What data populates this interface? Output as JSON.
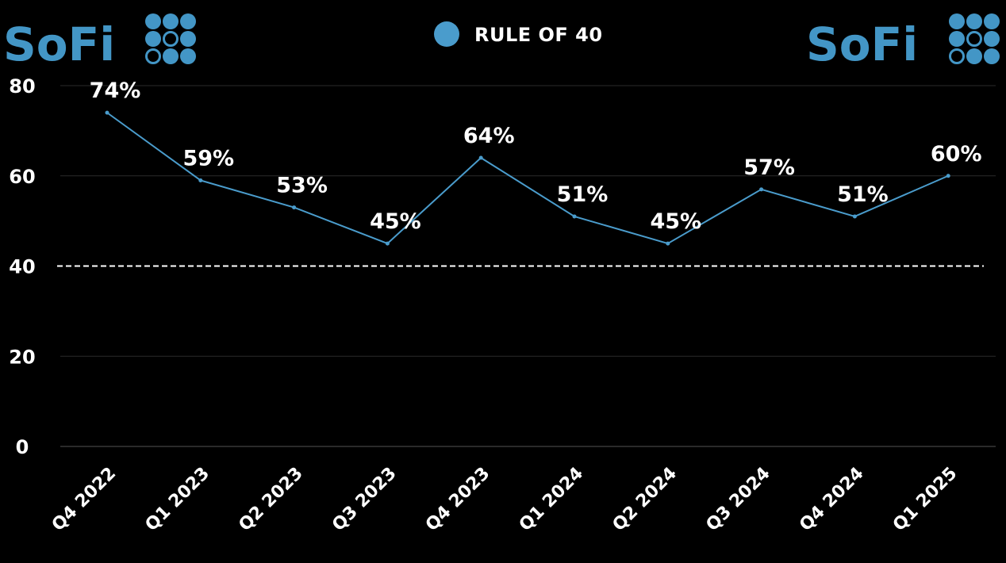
{
  "brand": {
    "name": "SoFi",
    "icon": "sofi-dot-grid-icon",
    "color": "#4396c6"
  },
  "colors": {
    "background": "#000000",
    "series": "#4a9ccc",
    "text": "#ffffff",
    "grid": "#2a2a2a",
    "threshold": "#ffffff"
  },
  "chart_data": {
    "type": "line",
    "title": "",
    "xlabel": "",
    "ylabel": "",
    "categories": [
      "Q4 2022",
      "Q1 2023",
      "Q2 2023",
      "Q3 2023",
      "Q4 2023",
      "Q1 2024",
      "Q2 2024",
      "Q3 2024",
      "Q4 2024",
      "Q1 2025"
    ],
    "series": [
      {
        "name": "RULE OF 40",
        "values": [
          74,
          59,
          53,
          45,
          64,
          51,
          45,
          57,
          51,
          60
        ],
        "data_labels": [
          "74%",
          "59%",
          "53%",
          "45%",
          "64%",
          "51%",
          "45%",
          "57%",
          "51%",
          "60%"
        ]
      }
    ],
    "yticks": [
      0,
      20,
      40,
      60,
      80
    ],
    "ytick_labels": [
      "0",
      "20",
      "40",
      "60",
      "80"
    ],
    "ylim": [
      0,
      80
    ],
    "reference_line": {
      "value": 40,
      "style": "dashed"
    },
    "grid": true,
    "legend": {
      "position": "top-center"
    }
  }
}
